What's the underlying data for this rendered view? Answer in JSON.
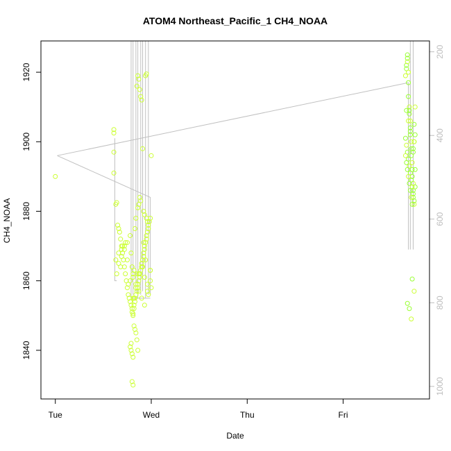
{
  "chart_data": {
    "type": "scatter",
    "title": "ATOM4 Northeast_Pacific_1 CH4_NOAA",
    "xlabel": "Date",
    "ylabel": "CH4_NOAA",
    "x_ticks": [
      "Tue",
      "Wed",
      "Thu",
      "Fri"
    ],
    "x_range_days": [
      -0.15,
      3.9
    ],
    "ylim": [
      1826,
      1929
    ],
    "y_ticks": [
      1840,
      1860,
      1880,
      1900,
      1920
    ],
    "y2_ticks": [
      200,
      400,
      600,
      800,
      1000
    ],
    "y2_range": [
      1030,
      174
    ],
    "point_color": "#ccff33",
    "point_color_alt": "#99ff33",
    "line_color": "#c0c0c0",
    "right_axis_color": "#bdbdbd",
    "series": [
      {
        "x": [
          0.0,
          0.61,
          0.61,
          0.61,
          0.61,
          0.63,
          0.64,
          0.65,
          0.66,
          0.67,
          0.68,
          0.69,
          0.7,
          0.71,
          0.72,
          0.73,
          0.74,
          0.75,
          0.76,
          0.77,
          0.78,
          0.79,
          0.8,
          0.8,
          0.81,
          0.81,
          0.82,
          0.82,
          0.83,
          0.83,
          0.84,
          0.85,
          0.86,
          0.86,
          0.87,
          0.88,
          0.88,
          0.89,
          0.9,
          0.9,
          0.91,
          0.92,
          0.92,
          0.93,
          0.93,
          0.94,
          0.95,
          0.95,
          0.96,
          0.97,
          0.97,
          0.98,
          0.99,
          0.99,
          1.0,
          0.64,
          0.66,
          0.69,
          0.72,
          0.75,
          0.78,
          0.81,
          0.84,
          0.87,
          0.9,
          0.93,
          0.96,
          0.99,
          0.63,
          0.68,
          0.73,
          0.79,
          0.85,
          0.91,
          0.97,
          0.7,
          0.76,
          0.82,
          0.88,
          0.94,
          0.86,
          0.87,
          0.88,
          0.89,
          0.92,
          0.93,
          0.95,
          0.96,
          0.82,
          0.83,
          0.84,
          0.85,
          0.86,
          0.79,
          0.8,
          0.81,
          0.8,
          0.81,
          0.78,
          0.79,
          0.94,
          0.95,
          1.0,
          0.66,
          0.69,
          0.72,
          0.75,
          0.78,
          0.81,
          0.84,
          0.87,
          0.9,
          0.93,
          0.96,
          0.99
        ],
        "y": [
          1890,
          1902.5,
          1903.5,
          1897,
          1891,
          1882,
          1882.5,
          1876,
          1875,
          1874,
          1872,
          1870,
          1868,
          1866,
          1864,
          1862,
          1860,
          1858,
          1856,
          1855,
          1854,
          1853,
          1852,
          1851,
          1850.5,
          1850,
          1852,
          1853,
          1854,
          1855,
          1856,
          1857,
          1858,
          1859,
          1860,
          1861,
          1862,
          1863,
          1864,
          1865,
          1866,
          1867,
          1868,
          1869,
          1870,
          1871,
          1872,
          1873,
          1874,
          1875,
          1876,
          1877,
          1878,
          1860,
          1858,
          1862,
          1865,
          1867,
          1869,
          1871,
          1873,
          1861,
          1859,
          1857,
          1855,
          1853,
          1857,
          1863,
          1866,
          1864,
          1871,
          1868,
          1862,
          1864,
          1856,
          1870,
          1859,
          1855,
          1862,
          1866,
          1881,
          1882,
          1884,
          1883,
          1880,
          1879,
          1878,
          1877,
          1847,
          1846,
          1845,
          1843,
          1840,
          1842,
          1839,
          1838,
          1831,
          1830,
          1841,
          1840,
          1919,
          1919.5,
          1896,
          1868,
          1869,
          1870,
          1866,
          1860,
          1855,
          1858,
          1862,
          1864,
          1861,
          1859,
          1863
        ]
      },
      {
        "x": [
          0.8,
          0.81,
          0.82,
          0.83,
          0.84,
          0.85,
          0.86,
          0.87,
          0.88,
          0.89,
          0.9,
          0.91,
          0.92
        ],
        "y": [
          1864,
          1862,
          1863,
          1875,
          1878,
          1916,
          1919,
          1918,
          1915,
          1913,
          1912,
          1898,
          1871
        ]
      },
      {
        "x": [
          3.65,
          3.66,
          3.66,
          3.67,
          3.67,
          3.67,
          3.68,
          3.68,
          3.68,
          3.69,
          3.69,
          3.69,
          3.7,
          3.7,
          3.7,
          3.71,
          3.71,
          3.71,
          3.72,
          3.72,
          3.72,
          3.73,
          3.73,
          3.73,
          3.74,
          3.74,
          3.74,
          3.75,
          3.75,
          3.65,
          3.66,
          3.67,
          3.68,
          3.69,
          3.7,
          3.71,
          3.72,
          3.73,
          3.74,
          3.65,
          3.66,
          3.67,
          3.68,
          3.69,
          3.7,
          3.71,
          3.72,
          3.73,
          3.74,
          3.75,
          3.66,
          3.68,
          3.7,
          3.72,
          3.74,
          3.67,
          3.69,
          3.71,
          3.73,
          3.75
        ],
        "y": [
          1919,
          1921,
          1922,
          1923,
          1924,
          1925,
          1920,
          1917,
          1913,
          1910,
          1909,
          1908,
          1906,
          1904,
          1902,
          1900,
          1898,
          1896,
          1894,
          1892,
          1890,
          1888,
          1886,
          1884,
          1882,
          1900,
          1905,
          1910,
          1887,
          1901,
          1899,
          1897,
          1895,
          1893,
          1891,
          1889,
          1887,
          1885,
          1883,
          1896,
          1894,
          1892,
          1890,
          1888,
          1886,
          1884,
          1882,
          1898,
          1900,
          1902,
          1909,
          1906,
          1903,
          1860.5,
          1857,
          1853.5,
          1852,
          1849,
          1897,
          1892
        ]
      }
    ]
  }
}
